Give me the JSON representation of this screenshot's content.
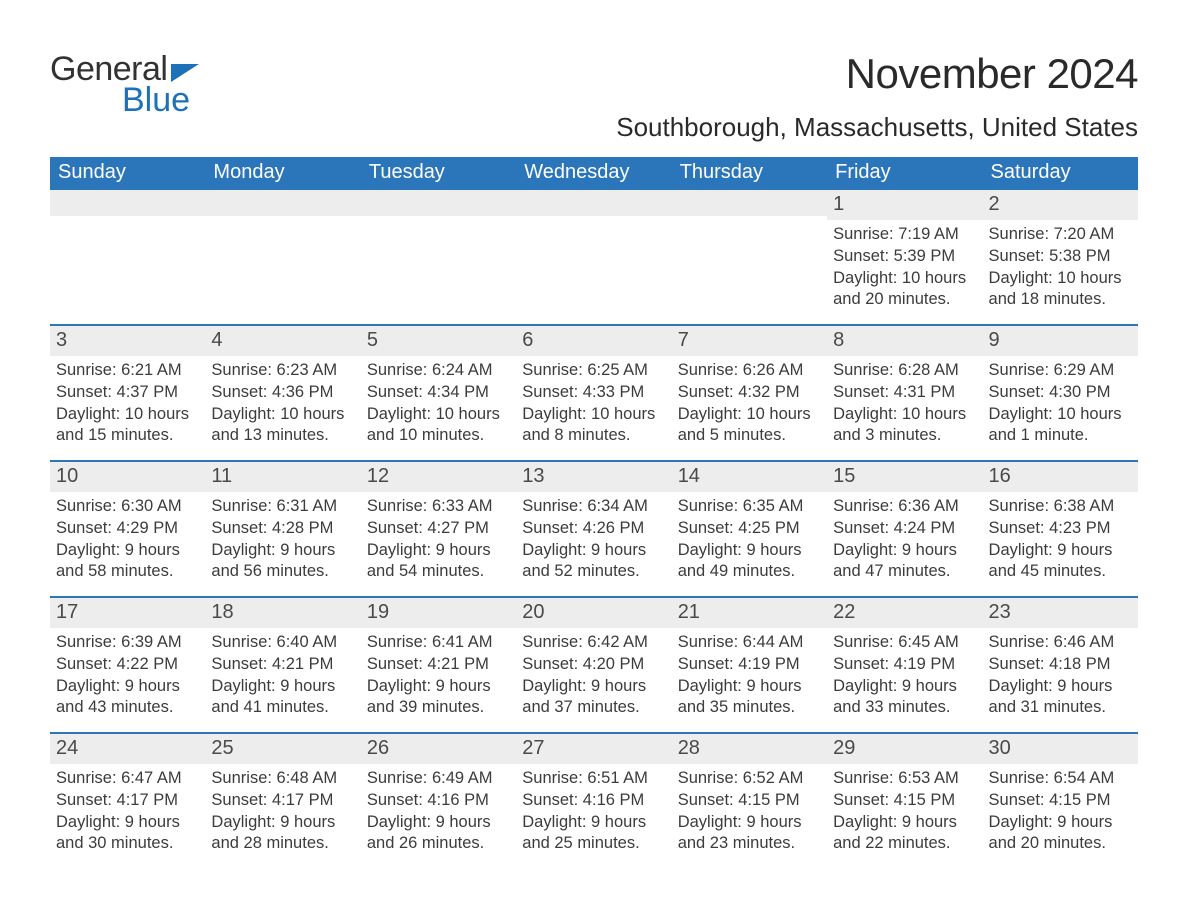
{
  "logo": {
    "word1": "General",
    "word2": "Blue"
  },
  "title": "November 2024",
  "location": "Southborough, Massachusetts, United States",
  "colors": {
    "header_bg": "#2b75bb",
    "header_text": "#ffffff",
    "daynum_bg": "#ededed",
    "day_border_top": "#2b75bb",
    "text": "#3c3c3c",
    "logo_blue": "#1d71b8",
    "logo_dark": "#323232",
    "background": "#ffffff"
  },
  "typography": {
    "title_fontsize": 42,
    "location_fontsize": 26,
    "header_fontsize": 20,
    "daynum_fontsize": 20,
    "body_fontsize": 16.5,
    "font_family": "Arial"
  },
  "day_headers": [
    "Sunday",
    "Monday",
    "Tuesday",
    "Wednesday",
    "Thursday",
    "Friday",
    "Saturday"
  ],
  "weeks": [
    [
      {
        "day": "",
        "sunrise": "",
        "sunset": "",
        "daylight": ""
      },
      {
        "day": "",
        "sunrise": "",
        "sunset": "",
        "daylight": ""
      },
      {
        "day": "",
        "sunrise": "",
        "sunset": "",
        "daylight": ""
      },
      {
        "day": "",
        "sunrise": "",
        "sunset": "",
        "daylight": ""
      },
      {
        "day": "",
        "sunrise": "",
        "sunset": "",
        "daylight": ""
      },
      {
        "day": "1",
        "sunrise": "Sunrise: 7:19 AM",
        "sunset": "Sunset: 5:39 PM",
        "daylight": "Daylight: 10 hours and 20 minutes."
      },
      {
        "day": "2",
        "sunrise": "Sunrise: 7:20 AM",
        "sunset": "Sunset: 5:38 PM",
        "daylight": "Daylight: 10 hours and 18 minutes."
      }
    ],
    [
      {
        "day": "3",
        "sunrise": "Sunrise: 6:21 AM",
        "sunset": "Sunset: 4:37 PM",
        "daylight": "Daylight: 10 hours and 15 minutes."
      },
      {
        "day": "4",
        "sunrise": "Sunrise: 6:23 AM",
        "sunset": "Sunset: 4:36 PM",
        "daylight": "Daylight: 10 hours and 13 minutes."
      },
      {
        "day": "5",
        "sunrise": "Sunrise: 6:24 AM",
        "sunset": "Sunset: 4:34 PM",
        "daylight": "Daylight: 10 hours and 10 minutes."
      },
      {
        "day": "6",
        "sunrise": "Sunrise: 6:25 AM",
        "sunset": "Sunset: 4:33 PM",
        "daylight": "Daylight: 10 hours and 8 minutes."
      },
      {
        "day": "7",
        "sunrise": "Sunrise: 6:26 AM",
        "sunset": "Sunset: 4:32 PM",
        "daylight": "Daylight: 10 hours and 5 minutes."
      },
      {
        "day": "8",
        "sunrise": "Sunrise: 6:28 AM",
        "sunset": "Sunset: 4:31 PM",
        "daylight": "Daylight: 10 hours and 3 minutes."
      },
      {
        "day": "9",
        "sunrise": "Sunrise: 6:29 AM",
        "sunset": "Sunset: 4:30 PM",
        "daylight": "Daylight: 10 hours and 1 minute."
      }
    ],
    [
      {
        "day": "10",
        "sunrise": "Sunrise: 6:30 AM",
        "sunset": "Sunset: 4:29 PM",
        "daylight": "Daylight: 9 hours and 58 minutes."
      },
      {
        "day": "11",
        "sunrise": "Sunrise: 6:31 AM",
        "sunset": "Sunset: 4:28 PM",
        "daylight": "Daylight: 9 hours and 56 minutes."
      },
      {
        "day": "12",
        "sunrise": "Sunrise: 6:33 AM",
        "sunset": "Sunset: 4:27 PM",
        "daylight": "Daylight: 9 hours and 54 minutes."
      },
      {
        "day": "13",
        "sunrise": "Sunrise: 6:34 AM",
        "sunset": "Sunset: 4:26 PM",
        "daylight": "Daylight: 9 hours and 52 minutes."
      },
      {
        "day": "14",
        "sunrise": "Sunrise: 6:35 AM",
        "sunset": "Sunset: 4:25 PM",
        "daylight": "Daylight: 9 hours and 49 minutes."
      },
      {
        "day": "15",
        "sunrise": "Sunrise: 6:36 AM",
        "sunset": "Sunset: 4:24 PM",
        "daylight": "Daylight: 9 hours and 47 minutes."
      },
      {
        "day": "16",
        "sunrise": "Sunrise: 6:38 AM",
        "sunset": "Sunset: 4:23 PM",
        "daylight": "Daylight: 9 hours and 45 minutes."
      }
    ],
    [
      {
        "day": "17",
        "sunrise": "Sunrise: 6:39 AM",
        "sunset": "Sunset: 4:22 PM",
        "daylight": "Daylight: 9 hours and 43 minutes."
      },
      {
        "day": "18",
        "sunrise": "Sunrise: 6:40 AM",
        "sunset": "Sunset: 4:21 PM",
        "daylight": "Daylight: 9 hours and 41 minutes."
      },
      {
        "day": "19",
        "sunrise": "Sunrise: 6:41 AM",
        "sunset": "Sunset: 4:21 PM",
        "daylight": "Daylight: 9 hours and 39 minutes."
      },
      {
        "day": "20",
        "sunrise": "Sunrise: 6:42 AM",
        "sunset": "Sunset: 4:20 PM",
        "daylight": "Daylight: 9 hours and 37 minutes."
      },
      {
        "day": "21",
        "sunrise": "Sunrise: 6:44 AM",
        "sunset": "Sunset: 4:19 PM",
        "daylight": "Daylight: 9 hours and 35 minutes."
      },
      {
        "day": "22",
        "sunrise": "Sunrise: 6:45 AM",
        "sunset": "Sunset: 4:19 PM",
        "daylight": "Daylight: 9 hours and 33 minutes."
      },
      {
        "day": "23",
        "sunrise": "Sunrise: 6:46 AM",
        "sunset": "Sunset: 4:18 PM",
        "daylight": "Daylight: 9 hours and 31 minutes."
      }
    ],
    [
      {
        "day": "24",
        "sunrise": "Sunrise: 6:47 AM",
        "sunset": "Sunset: 4:17 PM",
        "daylight": "Daylight: 9 hours and 30 minutes."
      },
      {
        "day": "25",
        "sunrise": "Sunrise: 6:48 AM",
        "sunset": "Sunset: 4:17 PM",
        "daylight": "Daylight: 9 hours and 28 minutes."
      },
      {
        "day": "26",
        "sunrise": "Sunrise: 6:49 AM",
        "sunset": "Sunset: 4:16 PM",
        "daylight": "Daylight: 9 hours and 26 minutes."
      },
      {
        "day": "27",
        "sunrise": "Sunrise: 6:51 AM",
        "sunset": "Sunset: 4:16 PM",
        "daylight": "Daylight: 9 hours and 25 minutes."
      },
      {
        "day": "28",
        "sunrise": "Sunrise: 6:52 AM",
        "sunset": "Sunset: 4:15 PM",
        "daylight": "Daylight: 9 hours and 23 minutes."
      },
      {
        "day": "29",
        "sunrise": "Sunrise: 6:53 AM",
        "sunset": "Sunset: 4:15 PM",
        "daylight": "Daylight: 9 hours and 22 minutes."
      },
      {
        "day": "30",
        "sunrise": "Sunrise: 6:54 AM",
        "sunset": "Sunset: 4:15 PM",
        "daylight": "Daylight: 9 hours and 20 minutes."
      }
    ]
  ]
}
